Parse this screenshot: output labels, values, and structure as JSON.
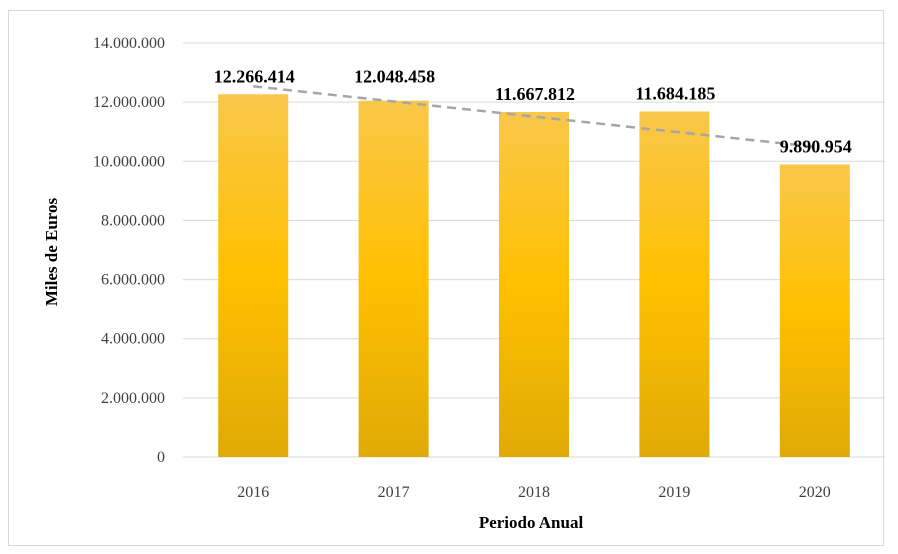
{
  "chart_data": {
    "type": "bar",
    "categories": [
      "2016",
      "2017",
      "2018",
      "2019",
      "2020"
    ],
    "values": [
      12266414,
      12048458,
      11667812,
      11684185,
      9890954
    ],
    "data_labels": [
      "12.266.414",
      "12.048.458",
      "11.667.812",
      "11.684.185",
      "9.890.954"
    ],
    "xlabel": "Periodo Anual",
    "ylabel": "Miles de Euros",
    "ylim": [
      0,
      14000000
    ],
    "yticks": [
      0,
      2000000,
      4000000,
      6000000,
      8000000,
      10000000,
      12000000,
      14000000
    ],
    "ytick_labels": [
      "0",
      "2.000.000",
      "4.000.000",
      "6.000.000",
      "8.000.000",
      "10.000.000",
      "12.000.000",
      "14.000.000"
    ],
    "grid": true,
    "trendline": "linear",
    "colors": {
      "bar_top": "#f9c74a",
      "bar_mid": "#ffc000",
      "bar_bottom": "#e0aa06",
      "trendline": "#a6a6a6",
      "grid": "#d9d9d9"
    }
  }
}
